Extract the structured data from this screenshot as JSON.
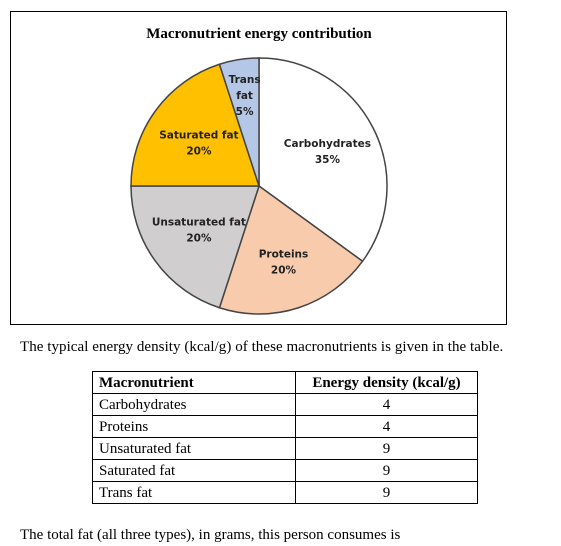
{
  "chart_data": {
    "type": "pie",
    "title": "Macronutrient energy contribution",
    "slices": [
      {
        "name": "Carbohydrates",
        "value": 35,
        "label": "35%",
        "color": "#ffffff"
      },
      {
        "name": "Proteins",
        "value": 20,
        "label": "20%",
        "color": "#f8cbad"
      },
      {
        "name": "Unsaturated fat",
        "value": 20,
        "label": "20%",
        "color": "#d0cece"
      },
      {
        "name": "Saturated fat",
        "value": 20,
        "label": "20%",
        "color": "#ffc000"
      },
      {
        "name": "Trans fat",
        "value": 5,
        "label": "5%",
        "color": "#b4c7e7"
      }
    ],
    "start": "12 o'clock",
    "direction": "clockwise",
    "legend": "none"
  },
  "intro_text": "The typical energy density (kcal/g) of these macronutrients is given in the table.",
  "table": {
    "headers": [
      "Macronutrient",
      "Energy density (kcal/g)"
    ],
    "rows": [
      [
        "Carbohydrates",
        "4"
      ],
      [
        "Proteins",
        "4"
      ],
      [
        "Unsaturated fat",
        "9"
      ],
      [
        "Saturated fat",
        "9"
      ],
      [
        "Trans fat",
        "9"
      ]
    ]
  },
  "question_text": "The total fat (all three types), in grams, this person consumes is"
}
